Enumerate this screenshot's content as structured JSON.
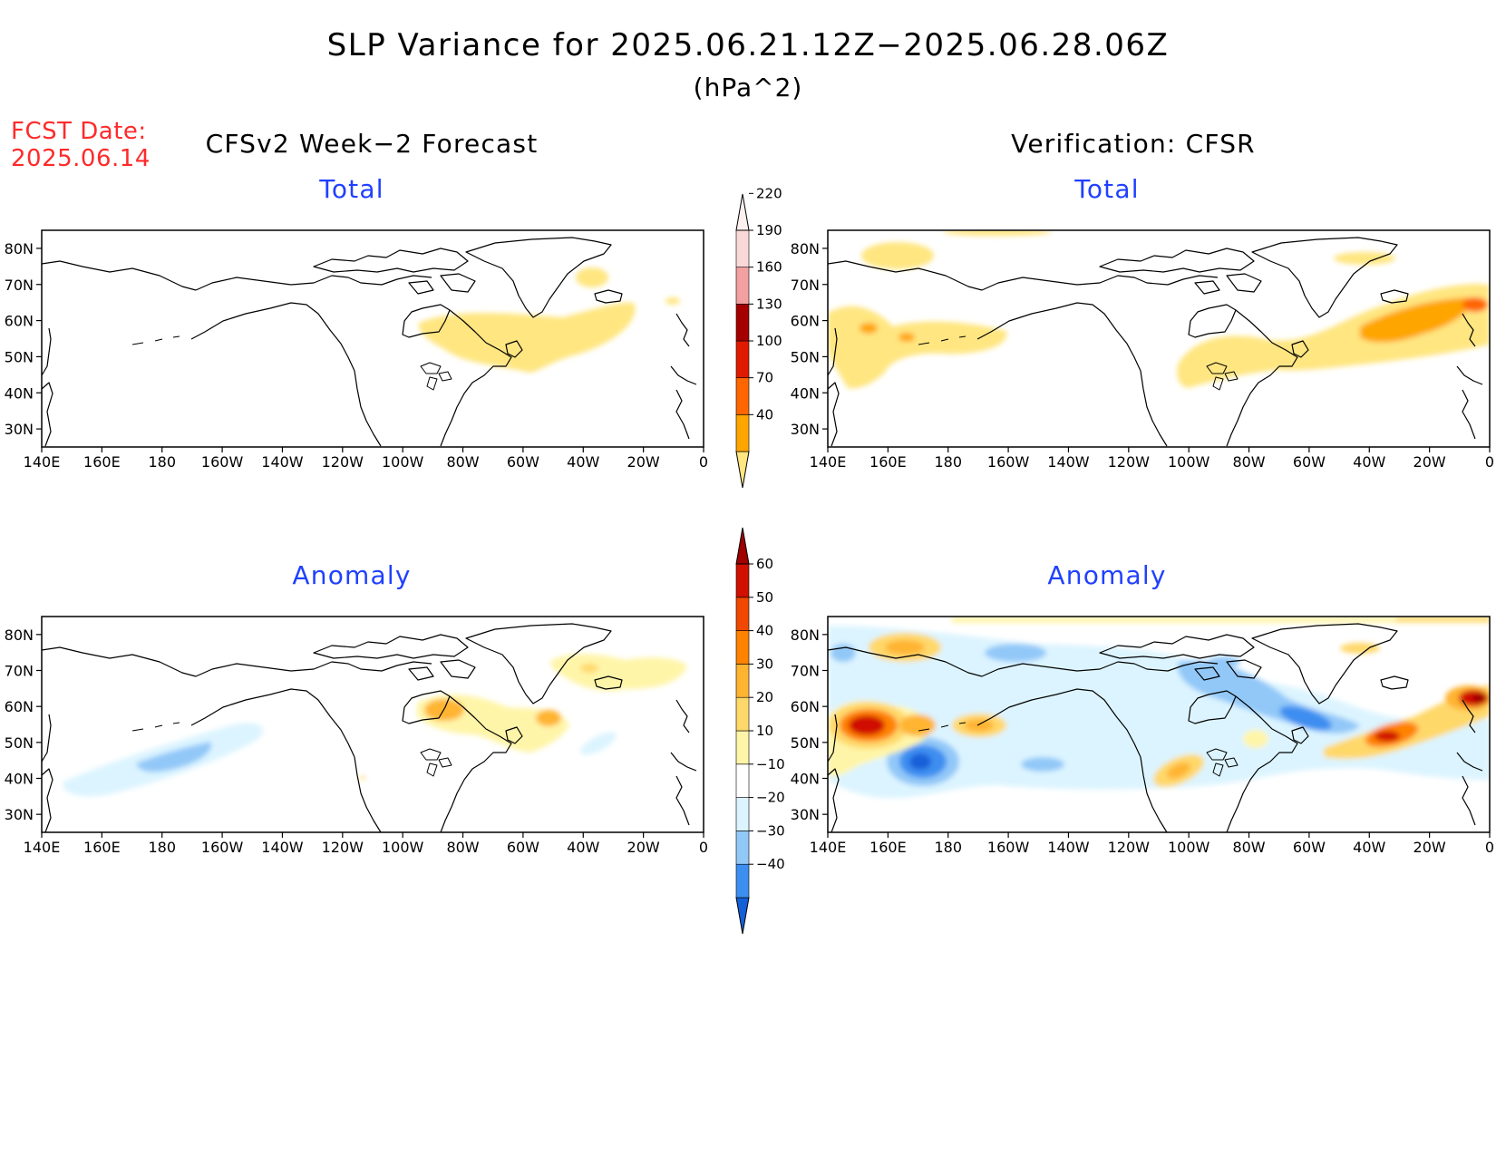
{
  "header": {
    "title": "SLP Variance for 2025.06.21.12Z−2025.06.28.06Z",
    "units": "(hPa^2)",
    "fcst_label": "FCST Date:",
    "fcst_date": "2025.06.14",
    "left_column_title": "CFSv2 Week−2 Forecast",
    "right_column_title": "Verification: CFSR"
  },
  "panels": {
    "forecast_total": {
      "title": "Total"
    },
    "verify_total": {
      "title": "Total"
    },
    "forecast_anomaly": {
      "title": "Anomaly"
    },
    "verify_anomaly": {
      "title": "Anomaly"
    }
  },
  "map_axes": {
    "lon_labels": [
      "140E",
      "160E",
      "180",
      "160W",
      "140W",
      "120W",
      "100W",
      "80W",
      "60W",
      "40W",
      "20W",
      "0"
    ],
    "lat_labels": [
      "80N",
      "70N",
      "60N",
      "50N",
      "40N",
      "30N"
    ],
    "lon_range": [
      140,
      360
    ],
    "lat_range": [
      25,
      85
    ]
  },
  "colorbars": {
    "total": {
      "levels": [
        40,
        70,
        100,
        130,
        160,
        190,
        220
      ],
      "labels": [
        "40",
        "70",
        "100",
        "130",
        "160",
        "190",
        "220"
      ],
      "colors": [
        "#ffe680",
        "#ffa500",
        "#ff6600",
        "#e01a00",
        "#a50000",
        "#f2a0a0",
        "#fbd8d8",
        "#fff0f0"
      ]
    },
    "anomaly": {
      "levels": [
        -40,
        -30,
        -20,
        -10,
        10,
        20,
        30,
        40,
        50,
        60
      ],
      "labels": [
        "−40",
        "−30",
        "−20",
        "−10",
        "10",
        "20",
        "30",
        "40",
        "50",
        "60"
      ],
      "colors": [
        "#1460d8",
        "#3c8ef0",
        "#92c8f8",
        "#dcf4ff",
        "#ffffff",
        "#fff5a8",
        "#ffd86a",
        "#ffb430",
        "#ff8200",
        "#f04800",
        "#d01000",
        "#a00000"
      ]
    }
  }
}
